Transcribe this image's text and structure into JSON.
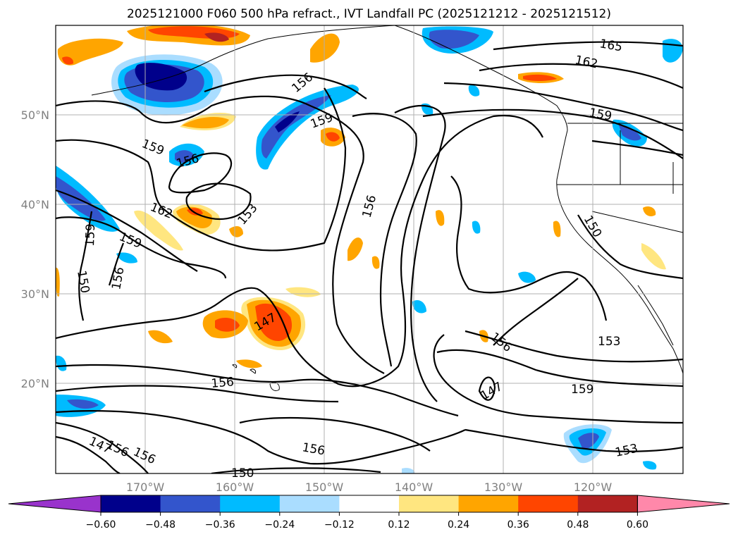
{
  "title": "2025121000 F060 500 hPa refract., IVT Landfall PC (2025121212 - 2025121512)",
  "map": {
    "lat_ticks": [
      "50°N",
      "40°N",
      "30°N",
      "20°N"
    ],
    "lon_ticks": [
      "170°W",
      "160°W",
      "150°W",
      "140°W",
      "130°W",
      "120°W"
    ],
    "grid": true,
    "contour_labels": [
      "165",
      "162",
      "156",
      "159",
      "159",
      "159",
      "156",
      "162",
      "153",
      "156",
      "159",
      "159",
      "156",
      "150",
      "150",
      "147",
      "153",
      "156",
      "147",
      "156",
      "159",
      "156",
      "153",
      "147",
      "156",
      "156",
      "150"
    ]
  },
  "colorbar": {
    "tick_labels": [
      "−0.60",
      "−0.48",
      "−0.36",
      "−0.24",
      "−0.12",
      "0.12",
      "0.24",
      "0.36",
      "0.48",
      "0.60"
    ],
    "colors": [
      "#9933CC",
      "#00008B",
      "#3355CC",
      "#00BBFF",
      "#AADDFF",
      "#FFFFFF",
      "#FFE680",
      "#FFA500",
      "#FF4500",
      "#B22222",
      "#FF88AA"
    ]
  },
  "shading_colors": {
    "neg_weak": "#AADDFF",
    "neg_mid": "#00BBFF",
    "neg_strong": "#3355CC",
    "neg_max": "#00008B",
    "pos_weak": "#FFE680",
    "pos_mid": "#FFA500",
    "pos_strong": "#FF4500",
    "pos_max": "#B22222"
  }
}
